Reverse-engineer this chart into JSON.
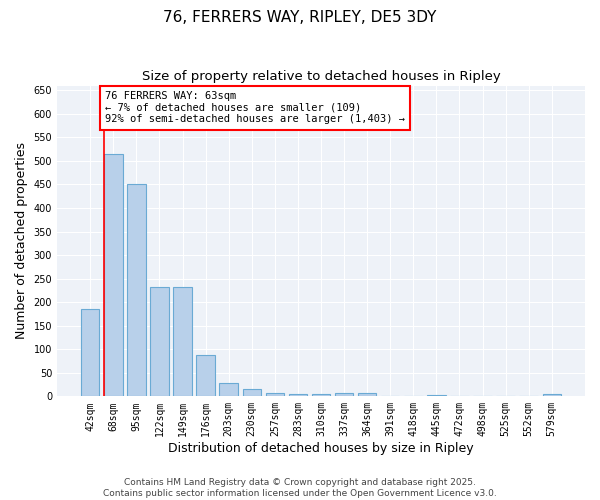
{
  "title": "76, FERRERS WAY, RIPLEY, DE5 3DY",
  "subtitle": "Size of property relative to detached houses in Ripley",
  "xlabel": "Distribution of detached houses by size in Ripley",
  "ylabel": "Number of detached properties",
  "categories": [
    "42sqm",
    "68sqm",
    "95sqm",
    "122sqm",
    "149sqm",
    "176sqm",
    "203sqm",
    "230sqm",
    "257sqm",
    "283sqm",
    "310sqm",
    "337sqm",
    "364sqm",
    "391sqm",
    "418sqm",
    "445sqm",
    "472sqm",
    "498sqm",
    "525sqm",
    "552sqm",
    "579sqm"
  ],
  "values": [
    185,
    515,
    450,
    232,
    232,
    87,
    28,
    15,
    8,
    5,
    5,
    7,
    7,
    0,
    0,
    3,
    0,
    0,
    0,
    0,
    5
  ],
  "bar_color": "#b8d0ea",
  "bar_edge_color": "#6aaad4",
  "annotation_box_text": "76 FERRERS WAY: 63sqm\n← 7% of detached houses are smaller (109)\n92% of semi-detached houses are larger (1,403) →",
  "red_line_bar_index": 1,
  "ylim": [
    0,
    660
  ],
  "yticks": [
    0,
    50,
    100,
    150,
    200,
    250,
    300,
    350,
    400,
    450,
    500,
    550,
    600,
    650
  ],
  "footnote": "Contains HM Land Registry data © Crown copyright and database right 2025.\nContains public sector information licensed under the Open Government Licence v3.0.",
  "bg_color": "#eef2f8",
  "grid_color": "#ffffff",
  "title_fontsize": 11,
  "subtitle_fontsize": 9.5,
  "label_fontsize": 9,
  "tick_fontsize": 7,
  "annotation_fontsize": 7.5,
  "footnote_fontsize": 6.5
}
